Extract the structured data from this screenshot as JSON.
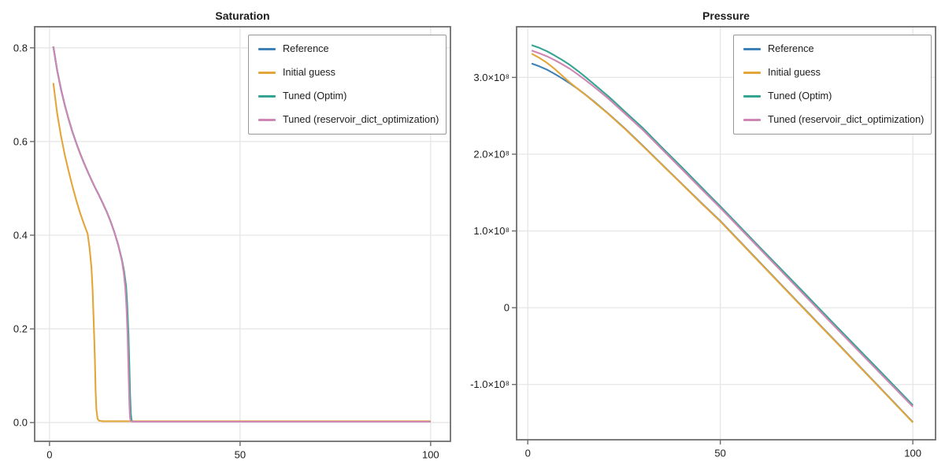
{
  "figure": {
    "background": "#FFFFFF"
  },
  "chart_data": [
    {
      "type": "line",
      "title": "Saturation",
      "xlabel": "",
      "ylabel": "",
      "xlim": [
        -3.9,
        105.2
      ],
      "ylim": [
        -0.04,
        0.845
      ],
      "grid": true,
      "legend_position": "top-right",
      "xticks": [
        {
          "v": 0,
          "label": "0"
        },
        {
          "v": 50,
          "label": "50"
        },
        {
          "v": 100,
          "label": "100"
        }
      ],
      "yticks": [
        {
          "v": 0.0,
          "label": "0.0"
        },
        {
          "v": 0.2,
          "label": "0.2"
        },
        {
          "v": 0.4,
          "label": "0.4"
        },
        {
          "v": 0.6,
          "label": "0.6"
        },
        {
          "v": 0.8,
          "label": "0.8"
        }
      ],
      "series": [
        {
          "name": "Reference",
          "color": "#3E81B6",
          "points": [
            [
              1,
              0.803
            ],
            [
              2,
              0.752
            ],
            [
              3,
              0.712
            ],
            [
              4,
              0.678
            ],
            [
              5,
              0.648
            ],
            [
              6,
              0.621
            ],
            [
              7,
              0.597
            ],
            [
              8,
              0.575
            ],
            [
              9,
              0.555
            ],
            [
              10,
              0.536
            ],
            [
              11,
              0.518
            ],
            [
              12,
              0.501
            ],
            [
              13,
              0.485
            ],
            [
              14,
              0.468
            ],
            [
              15,
              0.45
            ],
            [
              16,
              0.43
            ],
            [
              17,
              0.407
            ],
            [
              18,
              0.38
            ],
            [
              19,
              0.347
            ],
            [
              19.5,
              0.323
            ],
            [
              20,
              0.292
            ],
            [
              20.3,
              0.252
            ],
            [
              20.6,
              0.195
            ],
            [
              20.9,
              0.115
            ],
            [
              21.1,
              0.052
            ],
            [
              21.3,
              0.012
            ],
            [
              21.5,
              0.003
            ],
            [
              22,
              0.002
            ],
            [
              100,
              0.002
            ]
          ]
        },
        {
          "name": "Initial guess",
          "color": "#E3A63B",
          "points": [
            [
              1,
              0.725
            ],
            [
              2,
              0.66
            ],
            [
              3,
              0.612
            ],
            [
              4,
              0.572
            ],
            [
              5,
              0.537
            ],
            [
              6,
              0.505
            ],
            [
              7,
              0.475
            ],
            [
              8,
              0.448
            ],
            [
              9,
              0.425
            ],
            [
              10,
              0.403
            ],
            [
              10.5,
              0.373
            ],
            [
              11,
              0.332
            ],
            [
              11.3,
              0.283
            ],
            [
              11.6,
              0.215
            ],
            [
              11.9,
              0.135
            ],
            [
              12.1,
              0.068
            ],
            [
              12.3,
              0.028
            ],
            [
              12.6,
              0.008
            ],
            [
              13,
              0.004
            ],
            [
              14,
              0.003
            ],
            [
              100,
              0.003
            ]
          ]
        },
        {
          "name": "Tuned (Optim)",
          "color": "#35A492",
          "points": [
            [
              1,
              0.803
            ],
            [
              2,
              0.752
            ],
            [
              3,
              0.712
            ],
            [
              4,
              0.678
            ],
            [
              5,
              0.648
            ],
            [
              6,
              0.621
            ],
            [
              7,
              0.597
            ],
            [
              8,
              0.575
            ],
            [
              9,
              0.555
            ],
            [
              10,
              0.536
            ],
            [
              11,
              0.518
            ],
            [
              12,
              0.501
            ],
            [
              13,
              0.485
            ],
            [
              14,
              0.468
            ],
            [
              15,
              0.45
            ],
            [
              16,
              0.43
            ],
            [
              17,
              0.407
            ],
            [
              18,
              0.38
            ],
            [
              19,
              0.348
            ],
            [
              19.6,
              0.322
            ],
            [
              20.1,
              0.29
            ],
            [
              20.4,
              0.25
            ],
            [
              20.7,
              0.19
            ],
            [
              20.95,
              0.12
            ],
            [
              21.15,
              0.06
            ],
            [
              21.35,
              0.018
            ],
            [
              21.55,
              0.004
            ],
            [
              22,
              0.002
            ],
            [
              100,
              0.002
            ]
          ]
        },
        {
          "name": "Tuned (reservoir_dict_optimization)",
          "color": "#CE86B5",
          "points": [
            [
              1,
              0.803
            ],
            [
              2,
              0.752
            ],
            [
              3,
              0.712
            ],
            [
              4,
              0.678
            ],
            [
              5,
              0.648
            ],
            [
              6,
              0.621
            ],
            [
              7,
              0.597
            ],
            [
              8,
              0.575
            ],
            [
              9,
              0.555
            ],
            [
              10,
              0.536
            ],
            [
              11,
              0.518
            ],
            [
              12,
              0.501
            ],
            [
              13,
              0.485
            ],
            [
              14,
              0.468
            ],
            [
              15,
              0.45
            ],
            [
              16,
              0.43
            ],
            [
              17,
              0.407
            ],
            [
              18,
              0.38
            ],
            [
              19,
              0.345
            ],
            [
              19.5,
              0.319
            ],
            [
              19.9,
              0.287
            ],
            [
              20.2,
              0.246
            ],
            [
              20.5,
              0.183
            ],
            [
              20.75,
              0.103
            ],
            [
              20.95,
              0.04
            ],
            [
              21.1,
              0.012
            ],
            [
              21.3,
              0.003
            ],
            [
              22,
              0.002
            ],
            [
              100,
              0.002
            ]
          ]
        }
      ]
    },
    {
      "type": "line",
      "title": "Pressure",
      "xlabel": "",
      "ylabel": "",
      "xlim": [
        -2.9,
        105.9
      ],
      "ylim": [
        -172000000,
        366000000
      ],
      "grid": true,
      "legend_position": "top-right",
      "xticks": [
        {
          "v": 0,
          "label": "0"
        },
        {
          "v": 50,
          "label": "50"
        },
        {
          "v": 100,
          "label": "100"
        }
      ],
      "yticks": [
        {
          "v": 300000000,
          "label": "3.0×10⁸"
        },
        {
          "v": 200000000,
          "label": "2.0×10⁸"
        },
        {
          "v": 100000000,
          "label": "1.0×10⁸"
        },
        {
          "v": 0,
          "label": "0"
        },
        {
          "v": -100000000,
          "label": "-1.0×10⁸"
        }
      ],
      "series": [
        {
          "name": "Reference",
          "color": "#3E81B6",
          "points": [
            [
              1,
              318000000.0
            ],
            [
              3,
              314500000.0
            ],
            [
              5,
              310000000.0
            ],
            [
              7,
              304500000.0
            ],
            [
              9,
              298500000.0
            ],
            [
              11,
              292000000.0
            ],
            [
              13,
              285000000.0
            ],
            [
              15,
              277500000.0
            ],
            [
              17,
              269500000.0
            ],
            [
              19,
              261000000.0
            ],
            [
              21,
              252500000.0
            ],
            [
              23,
              243500000.0
            ],
            [
              25,
              234500000.0
            ],
            [
              30,
              210500000.0
            ],
            [
              35,
              186000000.0
            ],
            [
              40,
              161500000.0
            ],
            [
              45,
              137000000.0
            ],
            [
              50,
              113000000.0
            ],
            [
              60,
              60500000.0
            ],
            [
              70,
              8000000.0
            ],
            [
              80,
              -44000000.0
            ],
            [
              90,
              -96500000.0
            ],
            [
              100,
              -149000000.0
            ]
          ]
        },
        {
          "name": "Initial guess",
          "color": "#E3A63B",
          "points": [
            [
              1,
              331000000.0
            ],
            [
              3,
              325500000.0
            ],
            [
              5,
              319000000.0
            ],
            [
              7,
              311000000.0
            ],
            [
              9,
              302000000.0
            ],
            [
              11,
              293000000.0
            ],
            [
              13,
              285000000.0
            ],
            [
              15,
              277200000.0
            ],
            [
              17,
              269000000.0
            ],
            [
              19,
              260500000.0
            ],
            [
              21,
              252000000.0
            ],
            [
              23,
              243000000.0
            ],
            [
              25,
              234000000.0
            ],
            [
              30,
              210000000.0
            ],
            [
              35,
              185500000.0
            ],
            [
              40,
              161000000.0
            ],
            [
              45,
              136500000.0
            ],
            [
              50,
              112500000.0
            ],
            [
              60,
              60000000.0
            ],
            [
              70,
              7500000.0
            ],
            [
              80,
              -44500000.0
            ],
            [
              90,
              -97000000.0
            ],
            [
              100,
              -149500000.0
            ]
          ]
        },
        {
          "name": "Tuned (Optim)",
          "color": "#35A492",
          "points": [
            [
              1,
              342000000.0
            ],
            [
              3,
              338500000.0
            ],
            [
              5,
              334000000.0
            ],
            [
              7,
              328500000.0
            ],
            [
              9,
              322500000.0
            ],
            [
              11,
              316000000.0
            ],
            [
              13,
              308500000.0
            ],
            [
              15,
              300500000.0
            ],
            [
              17,
              292000000.0
            ],
            [
              19,
              283500000.0
            ],
            [
              21,
              275000000.0
            ],
            [
              23,
              266000000.0
            ],
            [
              25,
              256500000.0
            ],
            [
              30,
              233500000.0
            ],
            [
              35,
              208000000.0
            ],
            [
              40,
              183000000.0
            ],
            [
              45,
              157500000.0
            ],
            [
              50,
              132000000.0
            ],
            [
              60,
              80000000.0
            ],
            [
              70,
              28500000.0
            ],
            [
              80,
              -23500000.0
            ],
            [
              90,
              -75000000.0
            ],
            [
              100,
              -127000000.0
            ]
          ]
        },
        {
          "name": "Tuned (reservoir_dict_optimization)",
          "color": "#CE86B5",
          "points": [
            [
              1,
              335000000.0
            ],
            [
              3,
              331500000.0
            ],
            [
              5,
              327500000.0
            ],
            [
              7,
              322500000.0
            ],
            [
              9,
              317000000.0
            ],
            [
              11,
              311000000.0
            ],
            [
              13,
              304000000.0
            ],
            [
              15,
              296500000.0
            ],
            [
              17,
              288500000.0
            ],
            [
              19,
              280500000.0
            ],
            [
              21,
              272000000.0
            ],
            [
              23,
              263000000.0
            ],
            [
              25,
              254000000.0
            ],
            [
              30,
              231000000.0
            ],
            [
              35,
              205700000.0
            ],
            [
              40,
              180500000.0
            ],
            [
              45,
              155200000.0
            ],
            [
              50,
              130000000.0
            ],
            [
              60,
              78000000.0
            ],
            [
              70,
              26000000.0
            ],
            [
              80,
              -26000000.0
            ],
            [
              90,
              -77500000.0
            ],
            [
              100,
              -129000000.0
            ]
          ]
        }
      ]
    }
  ]
}
